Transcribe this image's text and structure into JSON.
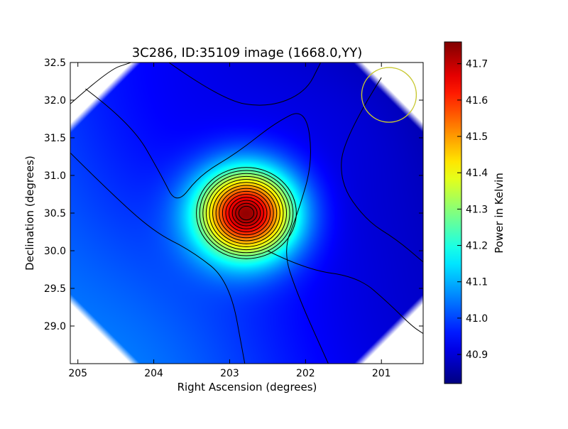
{
  "chart_data": {
    "type": "heatmap",
    "title": "3C286, ID:35109 image (1668.0,YY)",
    "xlabel": "Right Ascension (degrees)",
    "ylabel": "Declination (degrees)",
    "xlim": [
      205.1,
      200.45
    ],
    "ylim": [
      28.5,
      32.5
    ],
    "x_ticks": [
      {
        "value": 205,
        "label": "205"
      },
      {
        "value": 204,
        "label": "204"
      },
      {
        "value": 203,
        "label": "203"
      },
      {
        "value": 202,
        "label": "202"
      },
      {
        "value": 201,
        "label": "201"
      }
    ],
    "y_ticks": [
      {
        "value": 29.0,
        "label": "29.0"
      },
      {
        "value": 29.5,
        "label": "29.5"
      },
      {
        "value": 30.0,
        "label": "30.0"
      },
      {
        "value": 30.5,
        "label": "30.5"
      },
      {
        "value": 31.0,
        "label": "31.0"
      },
      {
        "value": 31.5,
        "label": "31.5"
      },
      {
        "value": 32.0,
        "label": "32.0"
      },
      {
        "value": 32.5,
        "label": "32.5"
      }
    ],
    "colorbar": {
      "label": "Power in Kelvin",
      "colormap": "jet",
      "range": [
        40.82,
        41.76
      ],
      "ticks": [
        {
          "value": 40.9,
          "label": "40.9"
        },
        {
          "value": 41.0,
          "label": "41.0"
        },
        {
          "value": 41.1,
          "label": "41.1"
        },
        {
          "value": 41.2,
          "label": "41.2"
        },
        {
          "value": 41.3,
          "label": "41.3"
        },
        {
          "value": 41.4,
          "label": "41.4"
        },
        {
          "value": 41.5,
          "label": "41.5"
        },
        {
          "value": 41.6,
          "label": "41.6"
        },
        {
          "value": 41.7,
          "label": "41.7"
        }
      ]
    },
    "source": {
      "ra": 202.78,
      "dec": 30.5,
      "peak": 41.76
    },
    "beam_circle": {
      "ra": 200.9,
      "dec": 32.07,
      "radius_deg": 0.36,
      "color": "#c8c832"
    },
    "background_range": [
      40.84,
      41.14
    ],
    "grid": false,
    "contours": true
  }
}
